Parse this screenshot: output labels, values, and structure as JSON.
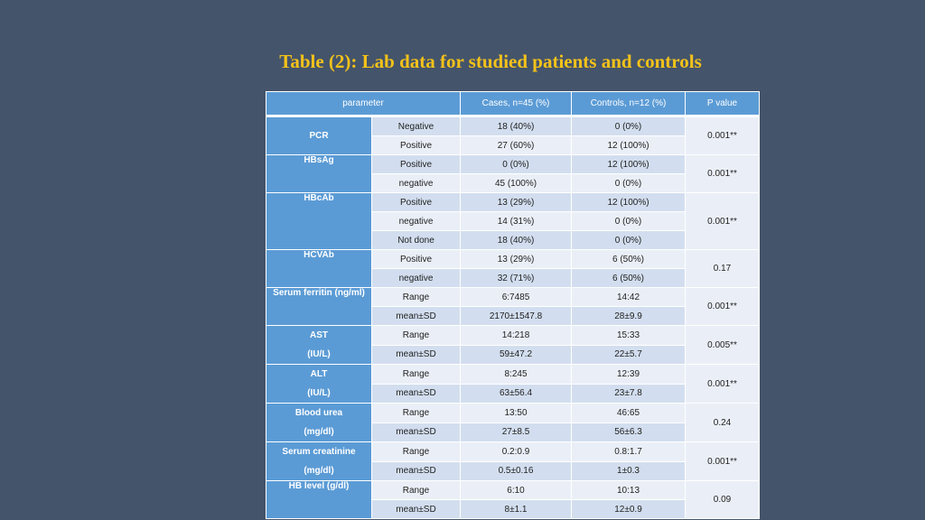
{
  "title": "Table (2): Lab data for studied patients and controls",
  "headers": {
    "parameter": "parameter",
    "cases": "Cases, n=45 (%)",
    "controls": "Controls, n=12 (%)",
    "p_value": "P value"
  },
  "groups": [
    {
      "param": [
        "PCR"
      ],
      "p": "0.001**",
      "rows": [
        {
          "sub": "Negative",
          "cases": "18 (40%)",
          "controls": "0 (0%)"
        },
        {
          "sub": "Positive",
          "cases": "27 (60%)",
          "controls": "12 (100%)"
        }
      ]
    },
    {
      "param": [
        "HBsAg"
      ],
      "p": "0.001**",
      "rows": [
        {
          "sub": "Positive",
          "cases": "0 (0%)",
          "controls": "12 (100%)"
        },
        {
          "sub": "negative",
          "cases": "45 (100%)",
          "controls": "0 (0%)"
        }
      ]
    },
    {
      "param": [
        "HBcAb"
      ],
      "p": "0.001**",
      "rows": [
        {
          "sub": "Positive",
          "cases": "13 (29%)",
          "controls": "12 (100%)"
        },
        {
          "sub": "negative",
          "cases": "14 (31%)",
          "controls": "0 (0%)"
        },
        {
          "sub": "Not done",
          "cases": "18 (40%)",
          "controls": "0 (0%)"
        }
      ]
    },
    {
      "param": [
        "HCVAb"
      ],
      "p": "0.17",
      "rows": [
        {
          "sub": "Positive",
          "cases": "13 (29%)",
          "controls": "6 (50%)"
        },
        {
          "sub": "negative",
          "cases": "32 (71%)",
          "controls": "6 (50%)"
        }
      ]
    },
    {
      "param": [
        "Serum ferritin (ng/ml)"
      ],
      "p": "0.001**",
      "rows": [
        {
          "sub": "Range",
          "cases": "6:7485",
          "controls": "14:42"
        },
        {
          "sub": "mean±SD",
          "cases": "2170±1547.8",
          "controls": "28±9.9"
        }
      ]
    },
    {
      "param": [
        "AST",
        "(IU/L)"
      ],
      "p": "0.005**",
      "rows": [
        {
          "sub": "Range",
          "cases": "14:218",
          "controls": "15:33"
        },
        {
          "sub": "mean±SD",
          "cases": "59±47.2",
          "controls": "22±5.7"
        }
      ]
    },
    {
      "param": [
        "ALT",
        "(IU/L)"
      ],
      "p": "0.001**",
      "rows": [
        {
          "sub": "Range",
          "cases": "8:245",
          "controls": "12:39"
        },
        {
          "sub": "mean±SD",
          "cases": "63±56.4",
          "controls": "23±7.8"
        }
      ]
    },
    {
      "param": [
        "Blood urea",
        "(mg/dl)"
      ],
      "p": "0.24",
      "rows": [
        {
          "sub": "Range",
          "cases": "13:50",
          "controls": "46:65"
        },
        {
          "sub": "mean±SD",
          "cases": "27±8.5",
          "controls": "56±6.3"
        }
      ]
    },
    {
      "param": [
        "Serum creatinine",
        "(mg/dl)"
      ],
      "p": "0.001**",
      "rows": [
        {
          "sub": "Range",
          "cases": "0.2:0.9",
          "controls": "0.8:1.7"
        },
        {
          "sub": "mean±SD",
          "cases": "0.5±0.16",
          "controls": "1±0.3"
        }
      ]
    },
    {
      "param": [
        "HB level (g/dl)"
      ],
      "p": "0.09",
      "rows": [
        {
          "sub": "Range",
          "cases": "6:10",
          "controls": "10:13"
        },
        {
          "sub": "mean±SD",
          "cases": "8±1.1",
          "controls": "12±0.9"
        }
      ]
    }
  ]
}
